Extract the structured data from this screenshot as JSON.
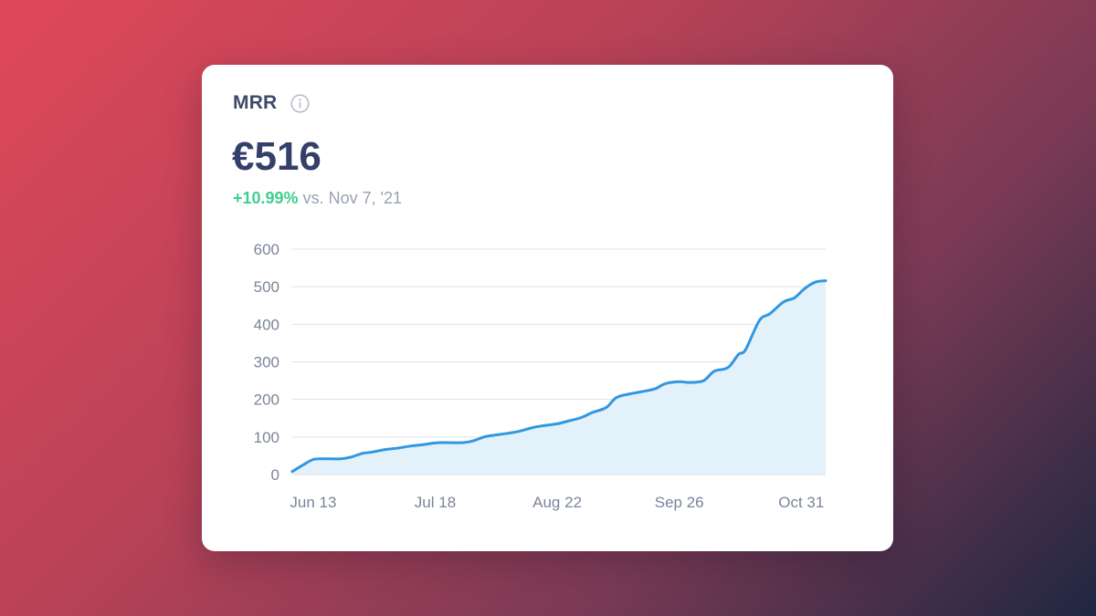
{
  "card": {
    "label": "MRR",
    "value": "€516",
    "change_pct": "+10.99%",
    "change_text": "vs. Nov 7, '21",
    "info_icon": "info-icon"
  },
  "colors": {
    "line": "#3197e0",
    "area": "#e3f1fb",
    "positive": "#3ecf8e",
    "grid": "#dde1e8"
  },
  "chart_data": {
    "type": "area",
    "title": "",
    "xlabel": "",
    "ylabel": "",
    "ylim": [
      0,
      600
    ],
    "xlim": [
      "2022-06-07",
      "2022-11-07"
    ],
    "yticks": [
      "0",
      "100",
      "200",
      "300",
      "400",
      "500",
      "600"
    ],
    "xticks": [
      {
        "label": "Jun 13",
        "date": "2022-06-13"
      },
      {
        "label": "Jul 18",
        "date": "2022-07-18"
      },
      {
        "label": "Aug 22",
        "date": "2022-08-22"
      },
      {
        "label": "Sep 26",
        "date": "2022-09-26"
      },
      {
        "label": "Oct 31",
        "date": "2022-10-31"
      }
    ],
    "grid": true,
    "legend": "none",
    "series": [
      {
        "points": [
          [
            "2022-06-07",
            8
          ],
          [
            "2022-06-10",
            25
          ],
          [
            "2022-06-13",
            40
          ],
          [
            "2022-06-16",
            42
          ],
          [
            "2022-06-21",
            42
          ],
          [
            "2022-06-24",
            47
          ],
          [
            "2022-06-27",
            56
          ],
          [
            "2022-06-30",
            60
          ],
          [
            "2022-07-04",
            67
          ],
          [
            "2022-07-07",
            70
          ],
          [
            "2022-07-11",
            76
          ],
          [
            "2022-07-14",
            79
          ],
          [
            "2022-07-18",
            84
          ],
          [
            "2022-07-21",
            85
          ],
          [
            "2022-07-26",
            85
          ],
          [
            "2022-07-29",
            90
          ],
          [
            "2022-08-01",
            100
          ],
          [
            "2022-08-04",
            105
          ],
          [
            "2022-08-08",
            110
          ],
          [
            "2022-08-11",
            115
          ],
          [
            "2022-08-15",
            125
          ],
          [
            "2022-08-18",
            130
          ],
          [
            "2022-08-22",
            135
          ],
          [
            "2022-08-25",
            142
          ],
          [
            "2022-08-29",
            152
          ],
          [
            "2022-09-01",
            165
          ],
          [
            "2022-09-05",
            178
          ],
          [
            "2022-09-08",
            205
          ],
          [
            "2022-09-12",
            215
          ],
          [
            "2022-09-15",
            220
          ],
          [
            "2022-09-19",
            228
          ],
          [
            "2022-09-22",
            242
          ],
          [
            "2022-09-26",
            247
          ],
          [
            "2022-09-29",
            245
          ],
          [
            "2022-10-03",
            250
          ],
          [
            "2022-10-06",
            275
          ],
          [
            "2022-10-10",
            285
          ],
          [
            "2022-10-13",
            320
          ],
          [
            "2022-10-15",
            332
          ],
          [
            "2022-10-19",
            410
          ],
          [
            "2022-10-22",
            428
          ],
          [
            "2022-10-26",
            460
          ],
          [
            "2022-10-29",
            470
          ],
          [
            "2022-11-01",
            495
          ],
          [
            "2022-11-04",
            512
          ],
          [
            "2022-11-07",
            516
          ]
        ]
      }
    ]
  }
}
